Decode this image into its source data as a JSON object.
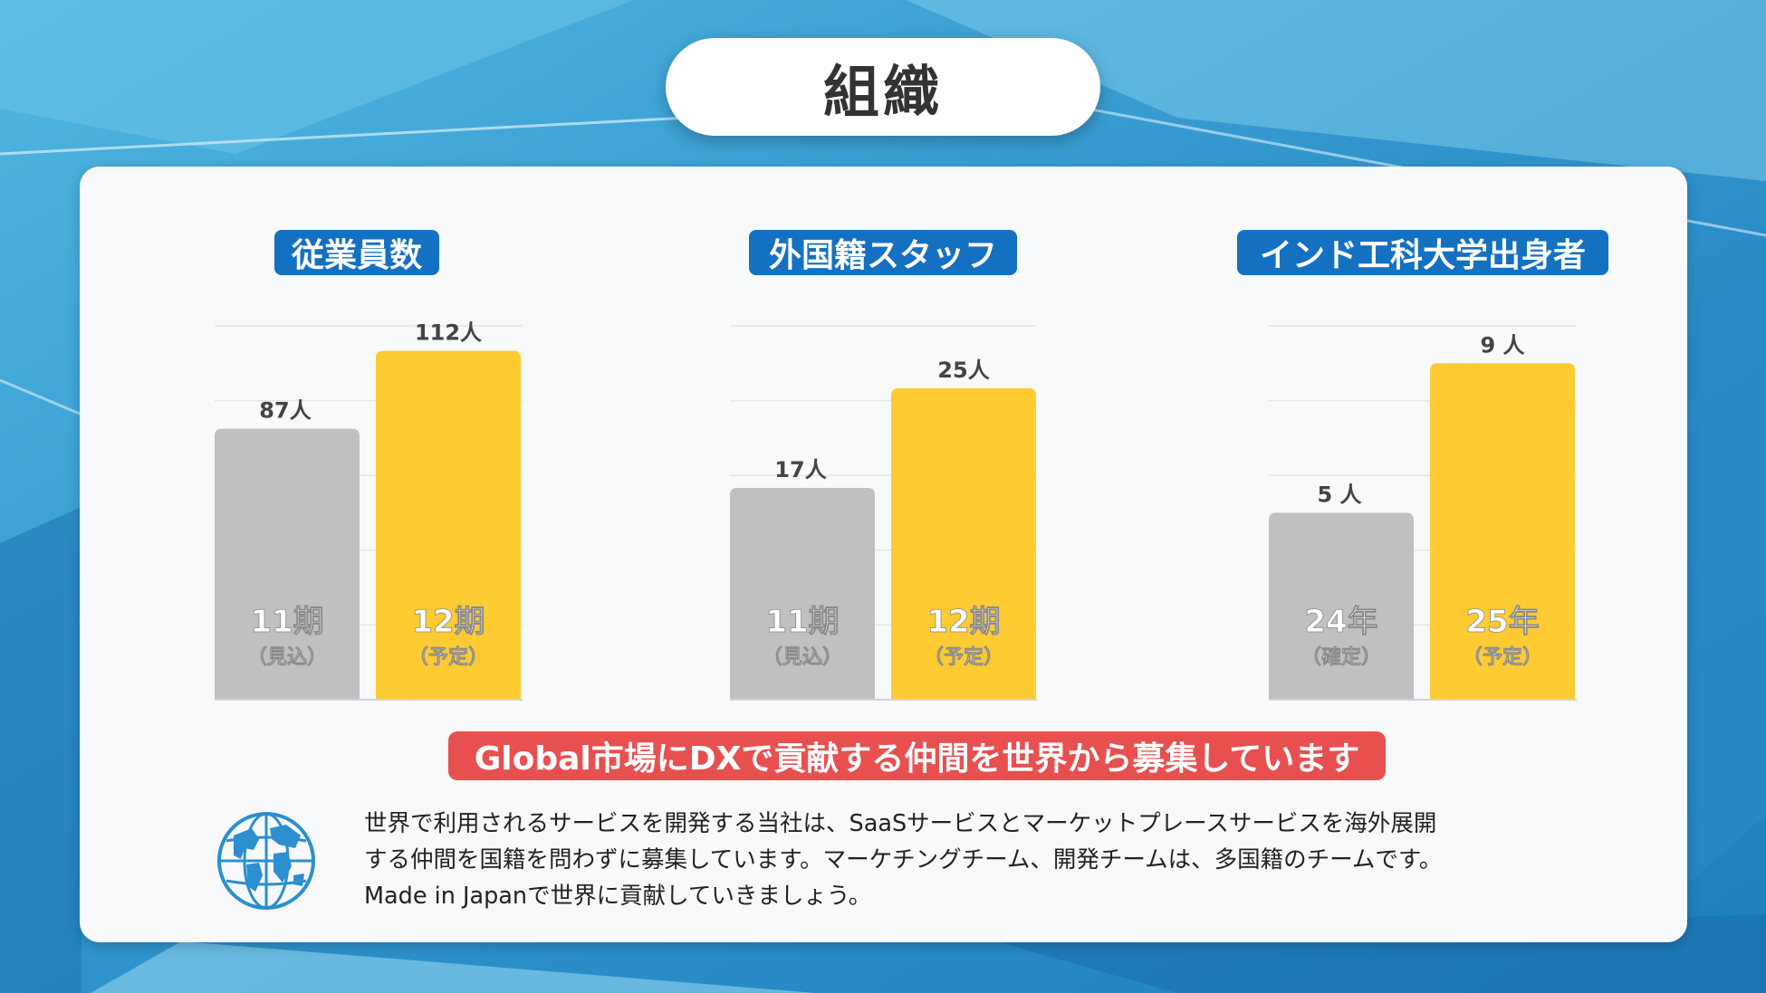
{
  "title": "組織",
  "colors": {
    "prev": "#c0c0c0",
    "next": "#ffcb32",
    "title_bg": "#1471c2",
    "slogan_bg": "#e85050"
  },
  "chart_data": [
    {
      "type": "bar",
      "title": "従業員数",
      "ylim": [
        0,
        120
      ],
      "categories": [
        {
          "label": "11期",
          "sub": "（見込）"
        },
        {
          "label": "12期",
          "sub": "（予定）"
        }
      ],
      "values": [
        87,
        112
      ],
      "value_labels": [
        "87人",
        "112人"
      ]
    },
    {
      "type": "bar",
      "title": "外国籍スタッフ",
      "ylim": [
        0,
        30
      ],
      "categories": [
        {
          "label": "11期",
          "sub": "（見込）"
        },
        {
          "label": "12期",
          "sub": "（予定）"
        }
      ],
      "values": [
        17,
        25
      ],
      "value_labels": [
        "17人",
        "25人"
      ]
    },
    {
      "type": "bar",
      "title": "インド工科大学出身者",
      "ylim": [
        0,
        10
      ],
      "categories": [
        {
          "label": "24年",
          "sub": "（確定）"
        },
        {
          "label": "25年",
          "sub": "（予定）"
        }
      ],
      "values": [
        5,
        9
      ],
      "value_labels": [
        "5 人",
        "9 人"
      ]
    }
  ],
  "slogan": "Global市場にDXで貢献する仲間を世界から募集しています",
  "globe_icon": "globe-icon",
  "description": [
    "世界で利用されるサービスを開発する当社は、SaaSサービスとマーケットプレースサービスを海外展開",
    "する仲間を国籍を問わずに募集しています。マーケチングチーム、開発チームは、多国籍のチームです。",
    "Made in Japanで世界に貢献していきましょう。"
  ]
}
